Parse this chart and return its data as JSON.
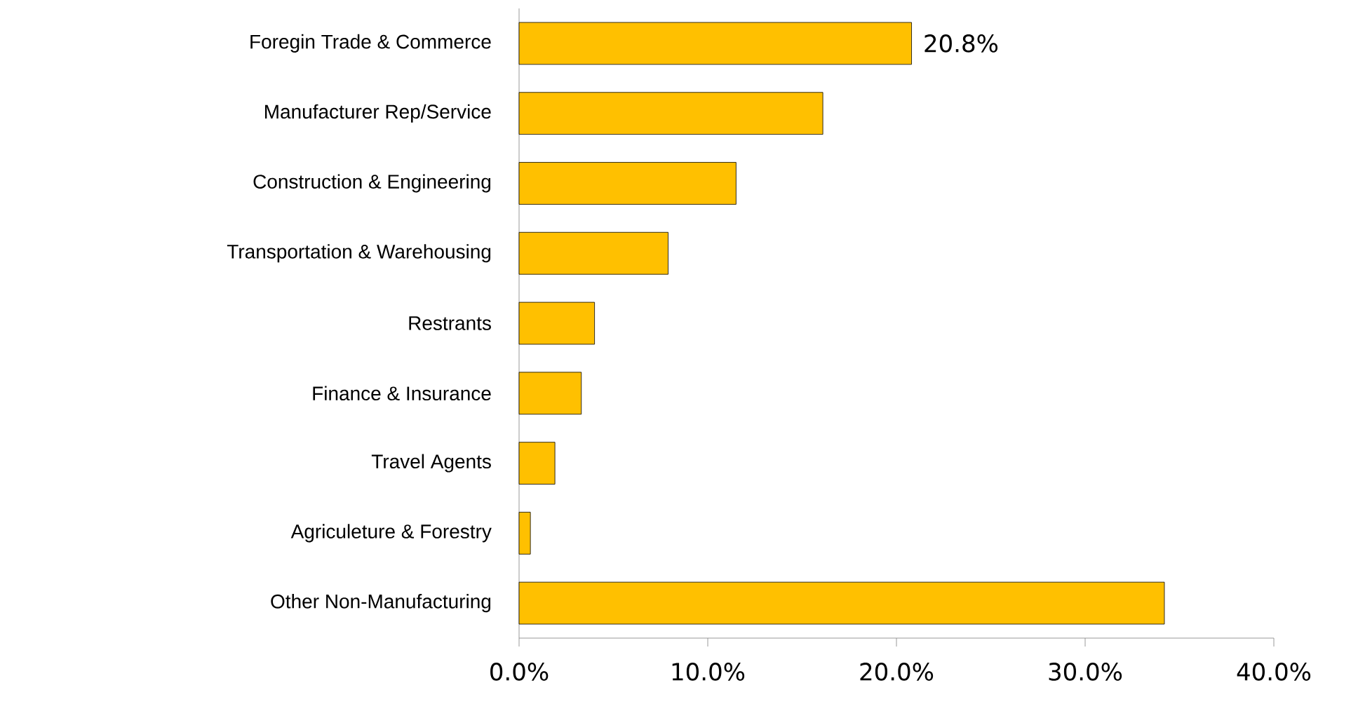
{
  "chart_data": {
    "type": "bar",
    "orientation": "horizontal",
    "categories": [
      "Foregin Trade & Commerce",
      "Manufacturer Rep/Service",
      "Construction & Engineering",
      "Transportation & Warehousing",
      "Restrants",
      "Finance & Insurance",
      "Travel Agents",
      "Agriculeture & Forestry",
      "Other Non-Manufacturing"
    ],
    "values": [
      20.8,
      16.1,
      11.5,
      7.9,
      4.0,
      3.3,
      1.9,
      0.6,
      34.2
    ],
    "value_labels": [
      "20.8%",
      null,
      null,
      null,
      null,
      null,
      null,
      null,
      null
    ],
    "color": "#ffc000",
    "xlim": [
      0,
      40
    ],
    "xticks": [
      {
        "value": 0,
        "label": "0.0%"
      },
      {
        "value": 10,
        "label": "10.0%"
      },
      {
        "value": 20,
        "label": "20.0%"
      },
      {
        "value": 30,
        "label": "30.0%"
      },
      {
        "value": 40,
        "label": "40.0%"
      }
    ]
  }
}
